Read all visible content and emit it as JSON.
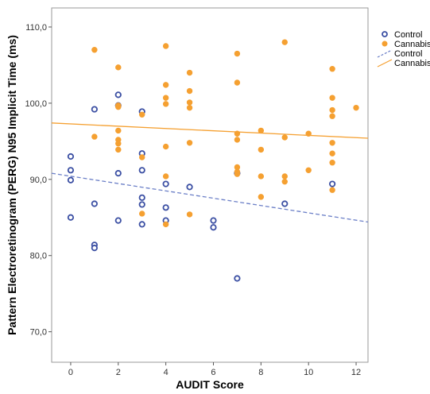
{
  "chart_data": {
    "type": "scatter",
    "xlabel": "AUDIT Score",
    "ylabel": "Pattern Electroretinogram (PERG) N95 Implicit Time (ms)",
    "xlim": [
      -0.8,
      12.5
    ],
    "ylim": [
      66,
      112.5
    ],
    "x_ticks": [
      0,
      2,
      4,
      6,
      8,
      10,
      12
    ],
    "x_tick_labels": [
      "0",
      "2",
      "4",
      "6",
      "8",
      "10",
      "12"
    ],
    "y_ticks": [
      70,
      80,
      90,
      100,
      110
    ],
    "y_tick_labels": [
      "70,0",
      "80,0",
      "90,0",
      "100,0",
      "110,0"
    ],
    "grid": false,
    "legend_position": "right",
    "legend": [
      {
        "label": "Control",
        "kind": "marker",
        "style": "open-circle",
        "color": "#3b4fa3"
      },
      {
        "label": "Cannabis",
        "kind": "marker",
        "style": "filled-circle",
        "color": "#f5a031"
      },
      {
        "label": "Control",
        "kind": "line",
        "style": "dashed",
        "color": "#6b7fc7"
      },
      {
        "label": "Cannabis",
        "kind": "line",
        "style": "solid",
        "color": "#f5a031"
      }
    ],
    "series": [
      {
        "name": "Control",
        "marker": "open-circle",
        "color": "#3b4fa3",
        "points": [
          [
            0,
            93.0
          ],
          [
            0,
            91.2
          ],
          [
            0,
            89.9
          ],
          [
            0,
            85.0
          ],
          [
            1,
            99.2
          ],
          [
            1,
            86.8
          ],
          [
            1,
            81.4
          ],
          [
            1,
            81.0
          ],
          [
            2,
            101.1
          ],
          [
            2,
            99.7
          ],
          [
            2,
            90.8
          ],
          [
            2,
            84.6
          ],
          [
            3,
            98.9
          ],
          [
            3,
            93.4
          ],
          [
            3,
            91.2
          ],
          [
            3,
            87.6
          ],
          [
            3,
            86.7
          ],
          [
            3,
            84.1
          ],
          [
            4,
            89.4
          ],
          [
            4,
            86.3
          ],
          [
            4,
            84.6
          ],
          [
            5,
            89.0
          ],
          [
            6,
            84.6
          ],
          [
            6,
            83.7
          ],
          [
            7,
            90.8
          ],
          [
            7,
            77.0
          ],
          [
            9,
            86.8
          ],
          [
            11,
            89.4
          ]
        ]
      },
      {
        "name": "Cannabis",
        "marker": "filled-circle",
        "color": "#f5a031",
        "points": [
          [
            1,
            107.0
          ],
          [
            1,
            95.6
          ],
          [
            2,
            104.7
          ],
          [
            2,
            99.7
          ],
          [
            2,
            99.5
          ],
          [
            2,
            96.4
          ],
          [
            2,
            95.2
          ],
          [
            2,
            94.7
          ],
          [
            2,
            93.9
          ],
          [
            3,
            98.5
          ],
          [
            3,
            92.9
          ],
          [
            3,
            85.5
          ],
          [
            4,
            107.5
          ],
          [
            4,
            102.4
          ],
          [
            4,
            100.7
          ],
          [
            4,
            99.9
          ],
          [
            4,
            94.3
          ],
          [
            4,
            90.4
          ],
          [
            4,
            84.1
          ],
          [
            5,
            104.0
          ],
          [
            5,
            101.6
          ],
          [
            5,
            100.1
          ],
          [
            5,
            99.4
          ],
          [
            5,
            94.8
          ],
          [
            5,
            85.4
          ],
          [
            7,
            106.5
          ],
          [
            7,
            102.7
          ],
          [
            7,
            96.0
          ],
          [
            7,
            95.2
          ],
          [
            7,
            91.6
          ],
          [
            7,
            91.0
          ],
          [
            7,
            90.7
          ],
          [
            8,
            96.4
          ],
          [
            8,
            93.9
          ],
          [
            8,
            90.4
          ],
          [
            8,
            87.7
          ],
          [
            9,
            108.0
          ],
          [
            9,
            95.5
          ],
          [
            9,
            90.4
          ],
          [
            9,
            89.7
          ],
          [
            10,
            96.0
          ],
          [
            10,
            91.2
          ],
          [
            11,
            104.5
          ],
          [
            11,
            100.7
          ],
          [
            11,
            99.1
          ],
          [
            11,
            98.3
          ],
          [
            11,
            94.8
          ],
          [
            11,
            93.4
          ],
          [
            11,
            92.2
          ],
          [
            11,
            88.6
          ],
          [
            12,
            99.4
          ]
        ]
      }
    ],
    "fit_lines": [
      {
        "name": "Control",
        "style": "dashed",
        "color": "#6b7fc7",
        "x": [
          -0.8,
          12.5
        ],
        "y": [
          90.8,
          84.4
        ]
      },
      {
        "name": "Cannabis",
        "style": "solid",
        "color": "#f5a031",
        "x": [
          -0.8,
          12.5
        ],
        "y": [
          97.4,
          95.4
        ]
      }
    ]
  }
}
